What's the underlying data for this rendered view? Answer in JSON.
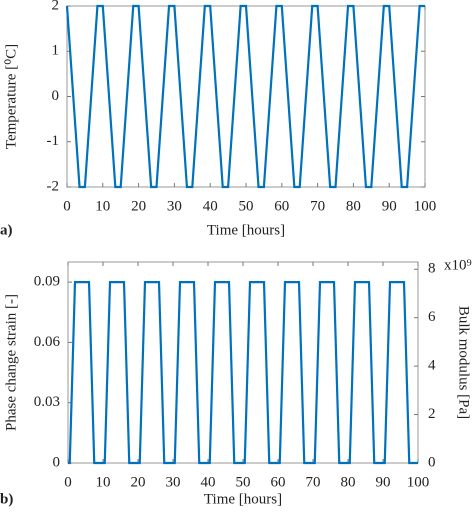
{
  "chart_data": [
    {
      "type": "line",
      "panel_label": "a)",
      "xlabel": "Time [hours]",
      "ylabel": "Temperature [⁰C]",
      "color": "#0072bd",
      "x": [
        0,
        3.5,
        5,
        8.5,
        10,
        13.5,
        15,
        18.5,
        20,
        23.5,
        25,
        28.5,
        30,
        33.5,
        35,
        38.5,
        40,
        43.5,
        45,
        48.5,
        50,
        53.5,
        55,
        58.5,
        60,
        63.5,
        65,
        68.5,
        70,
        73.5,
        75,
        78.5,
        80,
        83.5,
        85,
        88.5,
        90,
        93.5,
        95,
        98.5,
        100
      ],
      "values": [
        2,
        -2,
        -2,
        2,
        2,
        -2,
        -2,
        2,
        2,
        -2,
        -2,
        2,
        2,
        -2,
        -2,
        2,
        2,
        -2,
        -2,
        2,
        2,
        -2,
        -2,
        2,
        2,
        -2,
        -2,
        2,
        2,
        -2,
        -2,
        2,
        2,
        -2,
        -2,
        2,
        2,
        -2,
        -2,
        2,
        2
      ],
      "xlim": [
        0,
        100
      ],
      "xticks": [
        0,
        10,
        20,
        30,
        40,
        50,
        60,
        70,
        80,
        90,
        100
      ],
      "ylim": [
        -2,
        2
      ],
      "yticks": [
        -2,
        -1,
        0,
        1,
        2
      ]
    },
    {
      "type": "line",
      "panel_label": "b)",
      "xlabel": "Time [hours]",
      "ylabel": "Phase change strain [-]",
      "y2label": "Bulk modulus [Pa]",
      "y2_exponent": "x10⁹",
      "color": "#0072bd",
      "x": [
        0,
        0.5,
        2,
        6,
        7.5,
        10.5,
        12,
        16,
        17.5,
        20.5,
        22,
        26,
        27.5,
        30.5,
        32,
        36,
        37.5,
        40.5,
        42,
        46,
        47.5,
        50.5,
        52,
        56,
        57.5,
        60.5,
        62,
        66,
        67.5,
        70.5,
        72,
        76,
        77.5,
        80.5,
        82,
        86,
        87.5,
        90.5,
        92,
        96,
        97.5,
        100
      ],
      "values": [
        0,
        0,
        0.09,
        0.09,
        0,
        0,
        0.09,
        0.09,
        0,
        0,
        0.09,
        0.09,
        0,
        0,
        0.09,
        0.09,
        0,
        0,
        0.09,
        0.09,
        0,
        0,
        0.09,
        0.09,
        0,
        0,
        0.09,
        0.09,
        0,
        0,
        0.09,
        0.09,
        0,
        0,
        0.09,
        0.09,
        0,
        0,
        0.09,
        0.09,
        0,
        0
      ],
      "xlim": [
        0,
        100
      ],
      "xticks": [
        0,
        10,
        20,
        30,
        40,
        50,
        60,
        70,
        80,
        90,
        100
      ],
      "ylim": [
        0,
        0.1
      ],
      "yticks": [
        0,
        0.03,
        0.06,
        0.09
      ],
      "y2lim": [
        0,
        8.3
      ],
      "y2ticks": [
        0,
        2,
        4,
        6,
        8
      ]
    }
  ]
}
